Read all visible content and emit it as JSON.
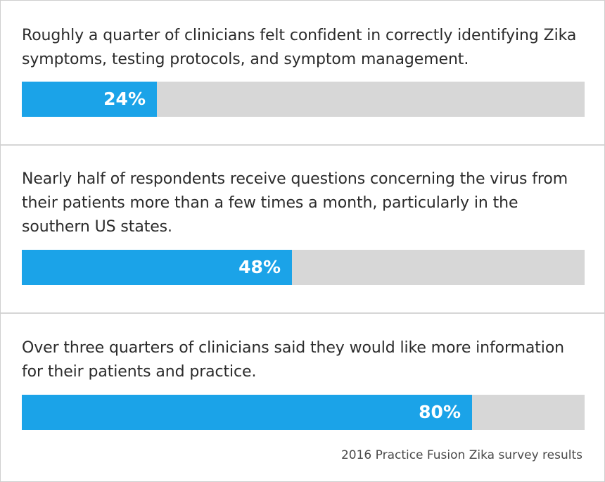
{
  "colors": {
    "accent": "#1ba3e8",
    "track": "#d7d7d7",
    "text": "#2b2b2b",
    "divider": "#d6d6d6"
  },
  "chart_data": {
    "type": "bar",
    "orientation": "horizontal",
    "title": "",
    "xlabel": "",
    "ylabel": "",
    "xlim": [
      0,
      100
    ],
    "categories": [
      "Roughly a quarter of clinicians felt confident in correctly identifying Zika symptoms, testing protocols, and symptom management.",
      "Nearly half of respondents receive questions concerning the virus from their patients more than a few times a month, particularly in the southern US states.",
      "Over three quarters of clinicians said they would like more information for their patients and practice."
    ],
    "values": [
      24,
      48,
      80
    ],
    "value_labels": [
      "24%",
      "48%",
      "80%"
    ],
    "annotation": "2016 Practice Fusion Zika survey results"
  }
}
